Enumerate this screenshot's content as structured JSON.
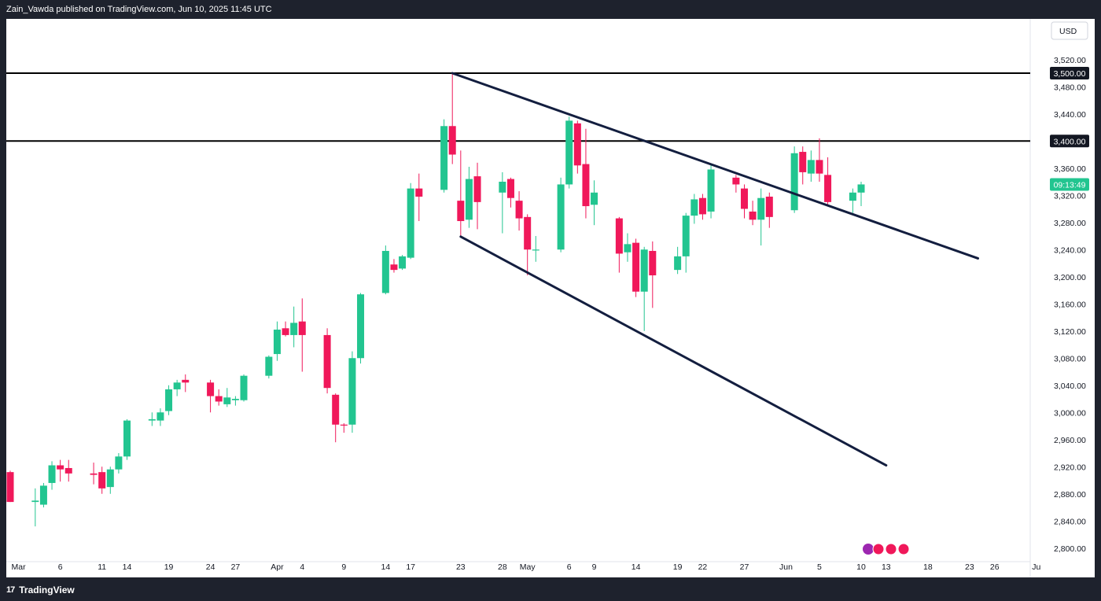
{
  "header": {
    "attribution": "Zain_Vawda published on TradingView.com, Jun 10, 2025 11:45 UTC"
  },
  "footer": {
    "brand_logo": "17",
    "brand_name": "TradingView"
  },
  "colors": {
    "up": "#22c590",
    "down": "#f0185a",
    "line": "#000000",
    "trend": "#131e3f",
    "countdown_bg": "#22c590"
  },
  "chart_data": {
    "type": "candlestick",
    "currency": "USD",
    "countdown": "09:13:49",
    "ylim": [
      2780,
      3580
    ],
    "y_ticks": [
      2800,
      2840,
      2880,
      2920,
      2960,
      3000,
      3040,
      3080,
      3120,
      3160,
      3200,
      3240,
      3280,
      3320,
      3360,
      3400,
      3440,
      3480,
      3520
    ],
    "y_tick_labels": [
      "2,800.00",
      "2,840.00",
      "2,880.00",
      "2,920.00",
      "2,960.00",
      "3,000.00",
      "3,040.00",
      "3,080.00",
      "3,120.00",
      "3,160.00",
      "3,200.00",
      "3,240.00",
      "3,280.00",
      "3,320.00",
      "3,360.00",
      "3,400.00",
      "3,440.00",
      "3,480.00",
      "3,520.00"
    ],
    "x_ticks": [
      {
        "date": "2025-03-01",
        "label": "Mar"
      },
      {
        "date": "2025-03-06",
        "label": "6"
      },
      {
        "date": "2025-03-11",
        "label": "11"
      },
      {
        "date": "2025-03-14",
        "label": "14"
      },
      {
        "date": "2025-03-19",
        "label": "19"
      },
      {
        "date": "2025-03-24",
        "label": "24"
      },
      {
        "date": "2025-03-27",
        "label": "27"
      },
      {
        "date": "2025-04-01",
        "label": "Apr"
      },
      {
        "date": "2025-04-04",
        "label": "4"
      },
      {
        "date": "2025-04-09",
        "label": "9"
      },
      {
        "date": "2025-04-14",
        "label": "14"
      },
      {
        "date": "2025-04-17",
        "label": "17"
      },
      {
        "date": "2025-04-23",
        "label": "23"
      },
      {
        "date": "2025-04-28",
        "label": "28"
      },
      {
        "date": "2025-05-01",
        "label": "May"
      },
      {
        "date": "2025-05-06",
        "label": "6"
      },
      {
        "date": "2025-05-09",
        "label": "9"
      },
      {
        "date": "2025-05-14",
        "label": "14"
      },
      {
        "date": "2025-05-19",
        "label": "19"
      },
      {
        "date": "2025-05-22",
        "label": "22"
      },
      {
        "date": "2025-05-27",
        "label": "27"
      },
      {
        "date": "2025-06-01",
        "label": "Jun"
      },
      {
        "date": "2025-06-05",
        "label": "5"
      },
      {
        "date": "2025-06-10",
        "label": "10"
      },
      {
        "date": "2025-06-13",
        "label": "13"
      },
      {
        "date": "2025-06-18",
        "label": "18"
      },
      {
        "date": "2025-06-23",
        "label": "23"
      },
      {
        "date": "2025-06-26",
        "label": "26"
      },
      {
        "date": "2025-07-01",
        "label": "Ju"
      }
    ],
    "candles": [
      {
        "date": "2025-02-28",
        "o": 2912,
        "h": 2914,
        "l": 2868,
        "c": 2868
      },
      {
        "date": "2025-03-03",
        "o": 2868,
        "h": 2888,
        "l": 2832,
        "c": 2870
      },
      {
        "date": "2025-03-04",
        "o": 2864,
        "h": 2896,
        "l": 2860,
        "c": 2892
      },
      {
        "date": "2025-03-05",
        "o": 2896,
        "h": 2928,
        "l": 2886,
        "c": 2922
      },
      {
        "date": "2025-03-06",
        "o": 2922,
        "h": 2930,
        "l": 2898,
        "c": 2916
      },
      {
        "date": "2025-03-07",
        "o": 2918,
        "h": 2930,
        "l": 2898,
        "c": 2910
      },
      {
        "date": "2025-03-10",
        "o": 2910,
        "h": 2926,
        "l": 2894,
        "c": 2908
      },
      {
        "date": "2025-03-11",
        "o": 2912,
        "h": 2920,
        "l": 2880,
        "c": 2888
      },
      {
        "date": "2025-03-12",
        "o": 2890,
        "h": 2920,
        "l": 2880,
        "c": 2916
      },
      {
        "date": "2025-03-13",
        "o": 2916,
        "h": 2940,
        "l": 2910,
        "c": 2935
      },
      {
        "date": "2025-03-14",
        "o": 2935,
        "h": 2990,
        "l": 2930,
        "c": 2988
      },
      {
        "date": "2025-03-17",
        "o": 2988,
        "h": 3000,
        "l": 2980,
        "c": 2990
      },
      {
        "date": "2025-03-18",
        "o": 2988,
        "h": 3006,
        "l": 2980,
        "c": 3000
      },
      {
        "date": "2025-03-19",
        "o": 3002,
        "h": 3040,
        "l": 2996,
        "c": 3034
      },
      {
        "date": "2025-03-20",
        "o": 3034,
        "h": 3048,
        "l": 3024,
        "c": 3044
      },
      {
        "date": "2025-03-21",
        "o": 3048,
        "h": 3056,
        "l": 3030,
        "c": 3044
      },
      {
        "date": "2025-03-24",
        "o": 3044,
        "h": 3048,
        "l": 3000,
        "c": 3024
      },
      {
        "date": "2025-03-25",
        "o": 3024,
        "h": 3034,
        "l": 3010,
        "c": 3016
      },
      {
        "date": "2025-03-26",
        "o": 3012,
        "h": 3036,
        "l": 3008,
        "c": 3022
      },
      {
        "date": "2025-03-27",
        "o": 3018,
        "h": 3024,
        "l": 3010,
        "c": 3020
      },
      {
        "date": "2025-03-28",
        "o": 3018,
        "h": 3056,
        "l": 3016,
        "c": 3054
      },
      {
        "date": "2025-03-31",
        "o": 3054,
        "h": 3084,
        "l": 3050,
        "c": 3082
      },
      {
        "date": "2025-04-01",
        "o": 3086,
        "h": 3134,
        "l": 3076,
        "c": 3122
      },
      {
        "date": "2025-04-02",
        "o": 3124,
        "h": 3134,
        "l": 3112,
        "c": 3114
      },
      {
        "date": "2025-04-03",
        "o": 3114,
        "h": 3156,
        "l": 3096,
        "c": 3132
      },
      {
        "date": "2025-04-04",
        "o": 3134,
        "h": 3168,
        "l": 3060,
        "c": 3114
      },
      {
        "date": "2025-04-07",
        "o": 3114,
        "h": 3124,
        "l": 3028,
        "c": 3036
      },
      {
        "date": "2025-04-08",
        "o": 3026,
        "h": 3028,
        "l": 2956,
        "c": 2982
      },
      {
        "date": "2025-04-09",
        "o": 2982,
        "h": 2984,
        "l": 2970,
        "c": 2981
      },
      {
        "date": "2025-04-10",
        "o": 2982,
        "h": 3090,
        "l": 2970,
        "c": 3080
      },
      {
        "date": "2025-04-11",
        "o": 3080,
        "h": 3176,
        "l": 3072,
        "c": 3174
      },
      {
        "date": "2025-04-14",
        "o": 3176,
        "h": 3246,
        "l": 3174,
        "c": 3238
      },
      {
        "date": "2025-04-15",
        "o": 3218,
        "h": 3226,
        "l": 3206,
        "c": 3210
      },
      {
        "date": "2025-04-16",
        "o": 3212,
        "h": 3232,
        "l": 3210,
        "c": 3230
      },
      {
        "date": "2025-04-17",
        "o": 3228,
        "h": 3338,
        "l": 3226,
        "c": 3330
      },
      {
        "date": "2025-04-18",
        "o": 3330,
        "h": 3352,
        "l": 3282,
        "c": 3318
      },
      {
        "date": "2025-04-21",
        "o": 3328,
        "h": 3432,
        "l": 3324,
        "c": 3422
      },
      {
        "date": "2025-04-22",
        "o": 3422,
        "h": 3500,
        "l": 3366,
        "c": 3380
      },
      {
        "date": "2025-04-23",
        "o": 3312,
        "h": 3386,
        "l": 3260,
        "c": 3282
      },
      {
        "date": "2025-04-24",
        "o": 3284,
        "h": 3362,
        "l": 3272,
        "c": 3344
      },
      {
        "date": "2025-04-25",
        "o": 3348,
        "h": 3368,
        "l": 3270,
        "c": 3310
      },
      {
        "date": "2025-04-28",
        "o": 3324,
        "h": 3354,
        "l": 3264,
        "c": 3340
      },
      {
        "date": "2025-04-29",
        "o": 3344,
        "h": 3346,
        "l": 3302,
        "c": 3316
      },
      {
        "date": "2025-04-30",
        "o": 3312,
        "h": 3326,
        "l": 3268,
        "c": 3286
      },
      {
        "date": "2025-05-01",
        "o": 3288,
        "h": 3292,
        "l": 3202,
        "c": 3240
      },
      {
        "date": "2025-05-02",
        "o": 3240,
        "h": 3260,
        "l": 3222,
        "c": 3240
      },
      {
        "date": "2025-05-05",
        "o": 3240,
        "h": 3346,
        "l": 3236,
        "c": 3336
      },
      {
        "date": "2025-05-06",
        "o": 3336,
        "h": 3436,
        "l": 3330,
        "c": 3430
      },
      {
        "date": "2025-05-07",
        "o": 3426,
        "h": 3430,
        "l": 3352,
        "c": 3364
      },
      {
        "date": "2025-05-08",
        "o": 3366,
        "h": 3418,
        "l": 3286,
        "c": 3304
      },
      {
        "date": "2025-05-09",
        "o": 3306,
        "h": 3342,
        "l": 3276,
        "c": 3324
      },
      {
        "date": "2025-05-12",
        "o": 3286,
        "h": 3288,
        "l": 3206,
        "c": 3234
      },
      {
        "date": "2025-05-13",
        "o": 3236,
        "h": 3264,
        "l": 3222,
        "c": 3248
      },
      {
        "date": "2025-05-14",
        "o": 3250,
        "h": 3256,
        "l": 3170,
        "c": 3178
      },
      {
        "date": "2025-05-15",
        "o": 3178,
        "h": 3244,
        "l": 3120,
        "c": 3240
      },
      {
        "date": "2025-05-16",
        "o": 3238,
        "h": 3252,
        "l": 3154,
        "c": 3202
      },
      {
        "date": "2025-05-19",
        "o": 3210,
        "h": 3244,
        "l": 3204,
        "c": 3230
      },
      {
        "date": "2025-05-20",
        "o": 3230,
        "h": 3294,
        "l": 3206,
        "c": 3290
      },
      {
        "date": "2025-05-21",
        "o": 3290,
        "h": 3322,
        "l": 3278,
        "c": 3314
      },
      {
        "date": "2025-05-22",
        "o": 3316,
        "h": 3322,
        "l": 3284,
        "c": 3292
      },
      {
        "date": "2025-05-23",
        "o": 3296,
        "h": 3364,
        "l": 3286,
        "c": 3358
      },
      {
        "date": "2025-05-26",
        "o": 3346,
        "h": 3350,
        "l": 3324,
        "c": 3336
      },
      {
        "date": "2025-05-27",
        "o": 3330,
        "h": 3336,
        "l": 3286,
        "c": 3300
      },
      {
        "date": "2025-05-28",
        "o": 3296,
        "h": 3312,
        "l": 3276,
        "c": 3284
      },
      {
        "date": "2025-05-29",
        "o": 3284,
        "h": 3330,
        "l": 3246,
        "c": 3316
      },
      {
        "date": "2025-05-30",
        "o": 3318,
        "h": 3324,
        "l": 3272,
        "c": 3288
      },
      {
        "date": "2025-06-02",
        "o": 3298,
        "h": 3392,
        "l": 3294,
        "c": 3382
      },
      {
        "date": "2025-06-03",
        "o": 3384,
        "h": 3392,
        "l": 3336,
        "c": 3354
      },
      {
        "date": "2025-06-04",
        "o": 3352,
        "h": 3386,
        "l": 3340,
        "c": 3372
      },
      {
        "date": "2025-06-05",
        "o": 3372,
        "h": 3404,
        "l": 3340,
        "c": 3352
      },
      {
        "date": "2025-06-06",
        "o": 3350,
        "h": 3376,
        "l": 3306,
        "c": 3310
      },
      {
        "date": "2025-06-09",
        "o": 3312,
        "h": 3330,
        "l": 3294,
        "c": 3324
      },
      {
        "date": "2025-06-10",
        "o": 3324,
        "h": 3340,
        "l": 3304,
        "c": 3336
      }
    ],
    "horizontal_lines": [
      {
        "value": 3500,
        "label": "3,500.00"
      },
      {
        "value": 3400,
        "label": "3,400.00"
      }
    ],
    "trendlines": [
      {
        "from": {
          "date": "2025-04-22",
          "value": 3500
        },
        "to": {
          "date": "2025-06-24",
          "value": 3227
        }
      },
      {
        "from": {
          "date": "2025-04-23",
          "value": 3259
        },
        "to": {
          "date": "2025-06-13",
          "value": 2922
        }
      }
    ]
  }
}
